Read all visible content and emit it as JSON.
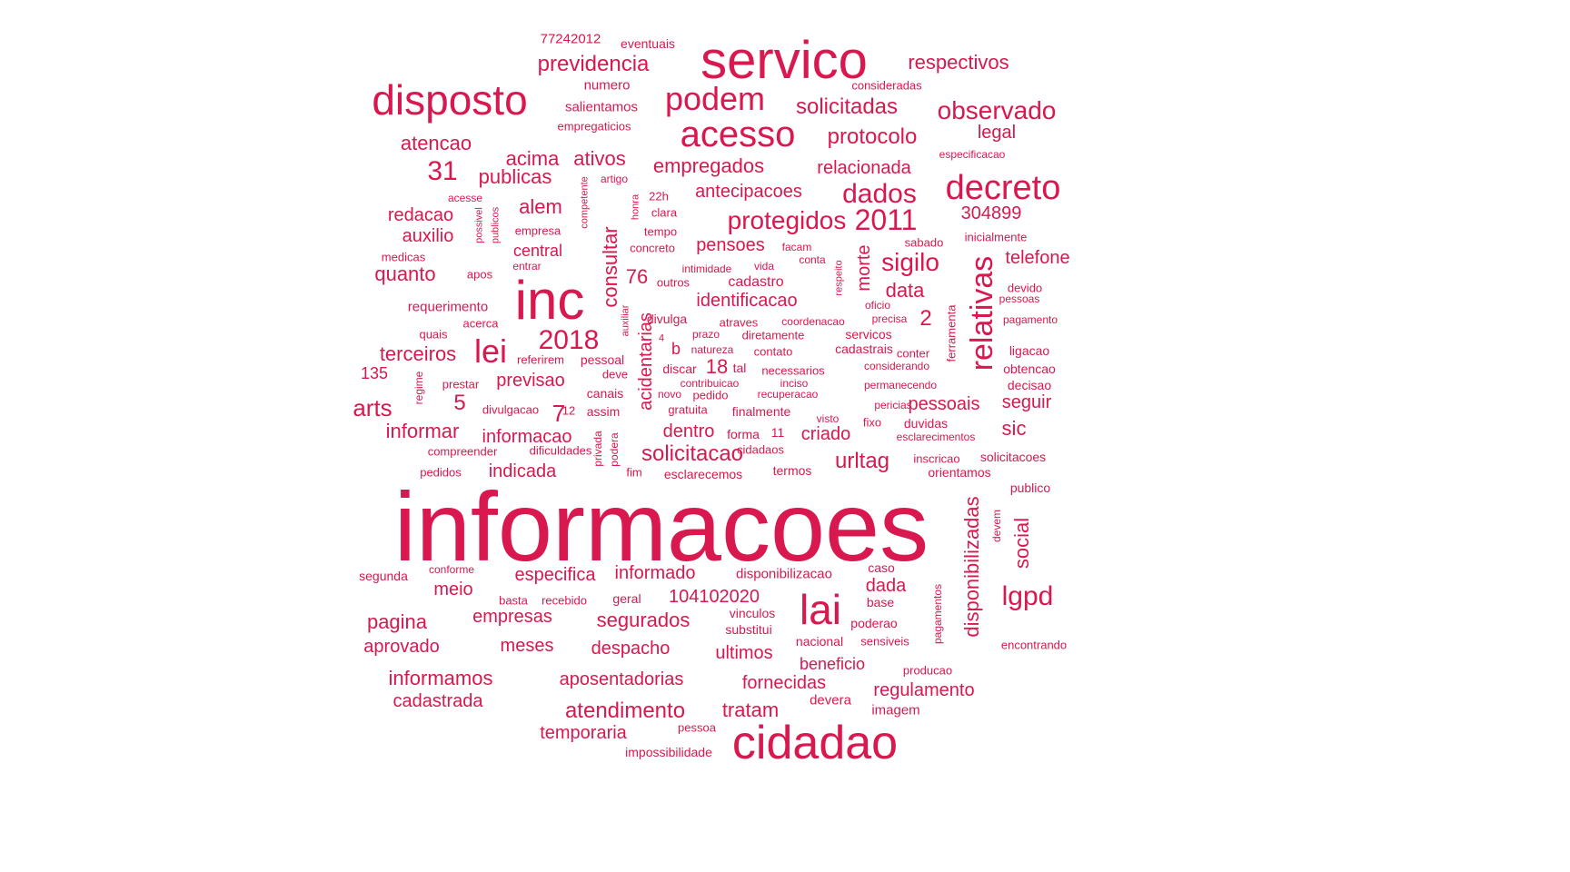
{
  "color": "#d8184f",
  "words": [
    "informacoes",
    "servico",
    "inc",
    "disposto",
    "acesso",
    "cidadao",
    "decreto",
    "lai",
    "podem",
    "relativas",
    "2011",
    "dados",
    "protegidos",
    "2018",
    "observado",
    "lgpd",
    "lei",
    "previdencia",
    "solicitadas",
    "sigilo",
    "respectivos",
    "atencao",
    "protocolo",
    "31",
    "acima",
    "ativos",
    "publicas",
    "empregados",
    "relacionada",
    "legal",
    "antecipacoes",
    "alem",
    "redacao",
    "auxilio",
    "quanto",
    "consultar",
    "pensoes",
    "telefone",
    "304899",
    "identificacao",
    "data",
    "morte",
    "2",
    "terceiros",
    "arts",
    "5",
    "7",
    "previsao",
    "informar",
    "informacao",
    "dentro",
    "solicitacao",
    "criado",
    "urltag",
    "indicada",
    "sic",
    "seguir",
    "pessoais",
    "acidentarias",
    "social",
    "disponibilizadas",
    "especifica",
    "informado",
    "104102020",
    "segurados",
    "empresas",
    "meio",
    "pagina",
    "aprovado",
    "meses",
    "despacho",
    "ultimos",
    "dada",
    "informamos",
    "aposentadorias",
    "fornecidas",
    "regulamento",
    "cadastrada",
    "atendimento",
    "tratam",
    "temporaria",
    "76",
    "18",
    "b",
    "central",
    "cadastro",
    "77242012",
    "eventuais",
    "numero",
    "salientamos",
    "empregaticios",
    "consideradas",
    "especificacao",
    "artigo",
    "competente",
    "acesse",
    "possivel",
    "publicos",
    "empresa",
    "22h",
    "clara",
    "honra",
    "tempo",
    "concreto",
    "facam",
    "sabado",
    "inicialmente",
    "medicas",
    "entrar",
    "apos",
    "intimidade",
    "vida",
    "conta",
    "respeito",
    "outros",
    "devido",
    "pessoas",
    "requerimento",
    "divulga",
    "auxiliar",
    "oficio",
    "precisa",
    "coordenacao",
    "atraves",
    "acerca",
    "quais",
    "diretamente",
    "servicos",
    "pagamento",
    "4",
    "natureza",
    "prazo",
    "contato",
    "cadastrais",
    "conter",
    "ligacao",
    "135",
    "referirem",
    "pessoal",
    "tal",
    "necessarios",
    "discar",
    "considerando",
    "obtencao",
    "deve",
    "regime",
    "prestar",
    "contribuicao",
    "inciso",
    "permanecendo",
    "decisao",
    "novo",
    "pedido",
    "recuperacao",
    "canais",
    "ferramenta",
    "divulgacao",
    "12",
    "assim",
    "gratuita",
    "finalmente",
    "pericias",
    "visto",
    "fixo",
    "duvidas",
    "forma",
    "11",
    "esclarecimentos",
    "compreender",
    "dificuldades",
    "privada",
    "podera",
    "cidadaos",
    "inscricao",
    "solicitacoes",
    "pedidos",
    "fim",
    "esclarecemos",
    "termos",
    "orientamos",
    "publico",
    "devem",
    "conforme",
    "segunda",
    "disponibilizacao",
    "caso",
    "pagamentos",
    "basta",
    "recebido",
    "geral",
    "base",
    "vinculos",
    "substitui",
    "poderao",
    "nacional",
    "sensiveis",
    "encontrando",
    "beneficio",
    "producao",
    "devera",
    "imagem",
    "pessoa",
    "impossibilidade"
  ]
}
